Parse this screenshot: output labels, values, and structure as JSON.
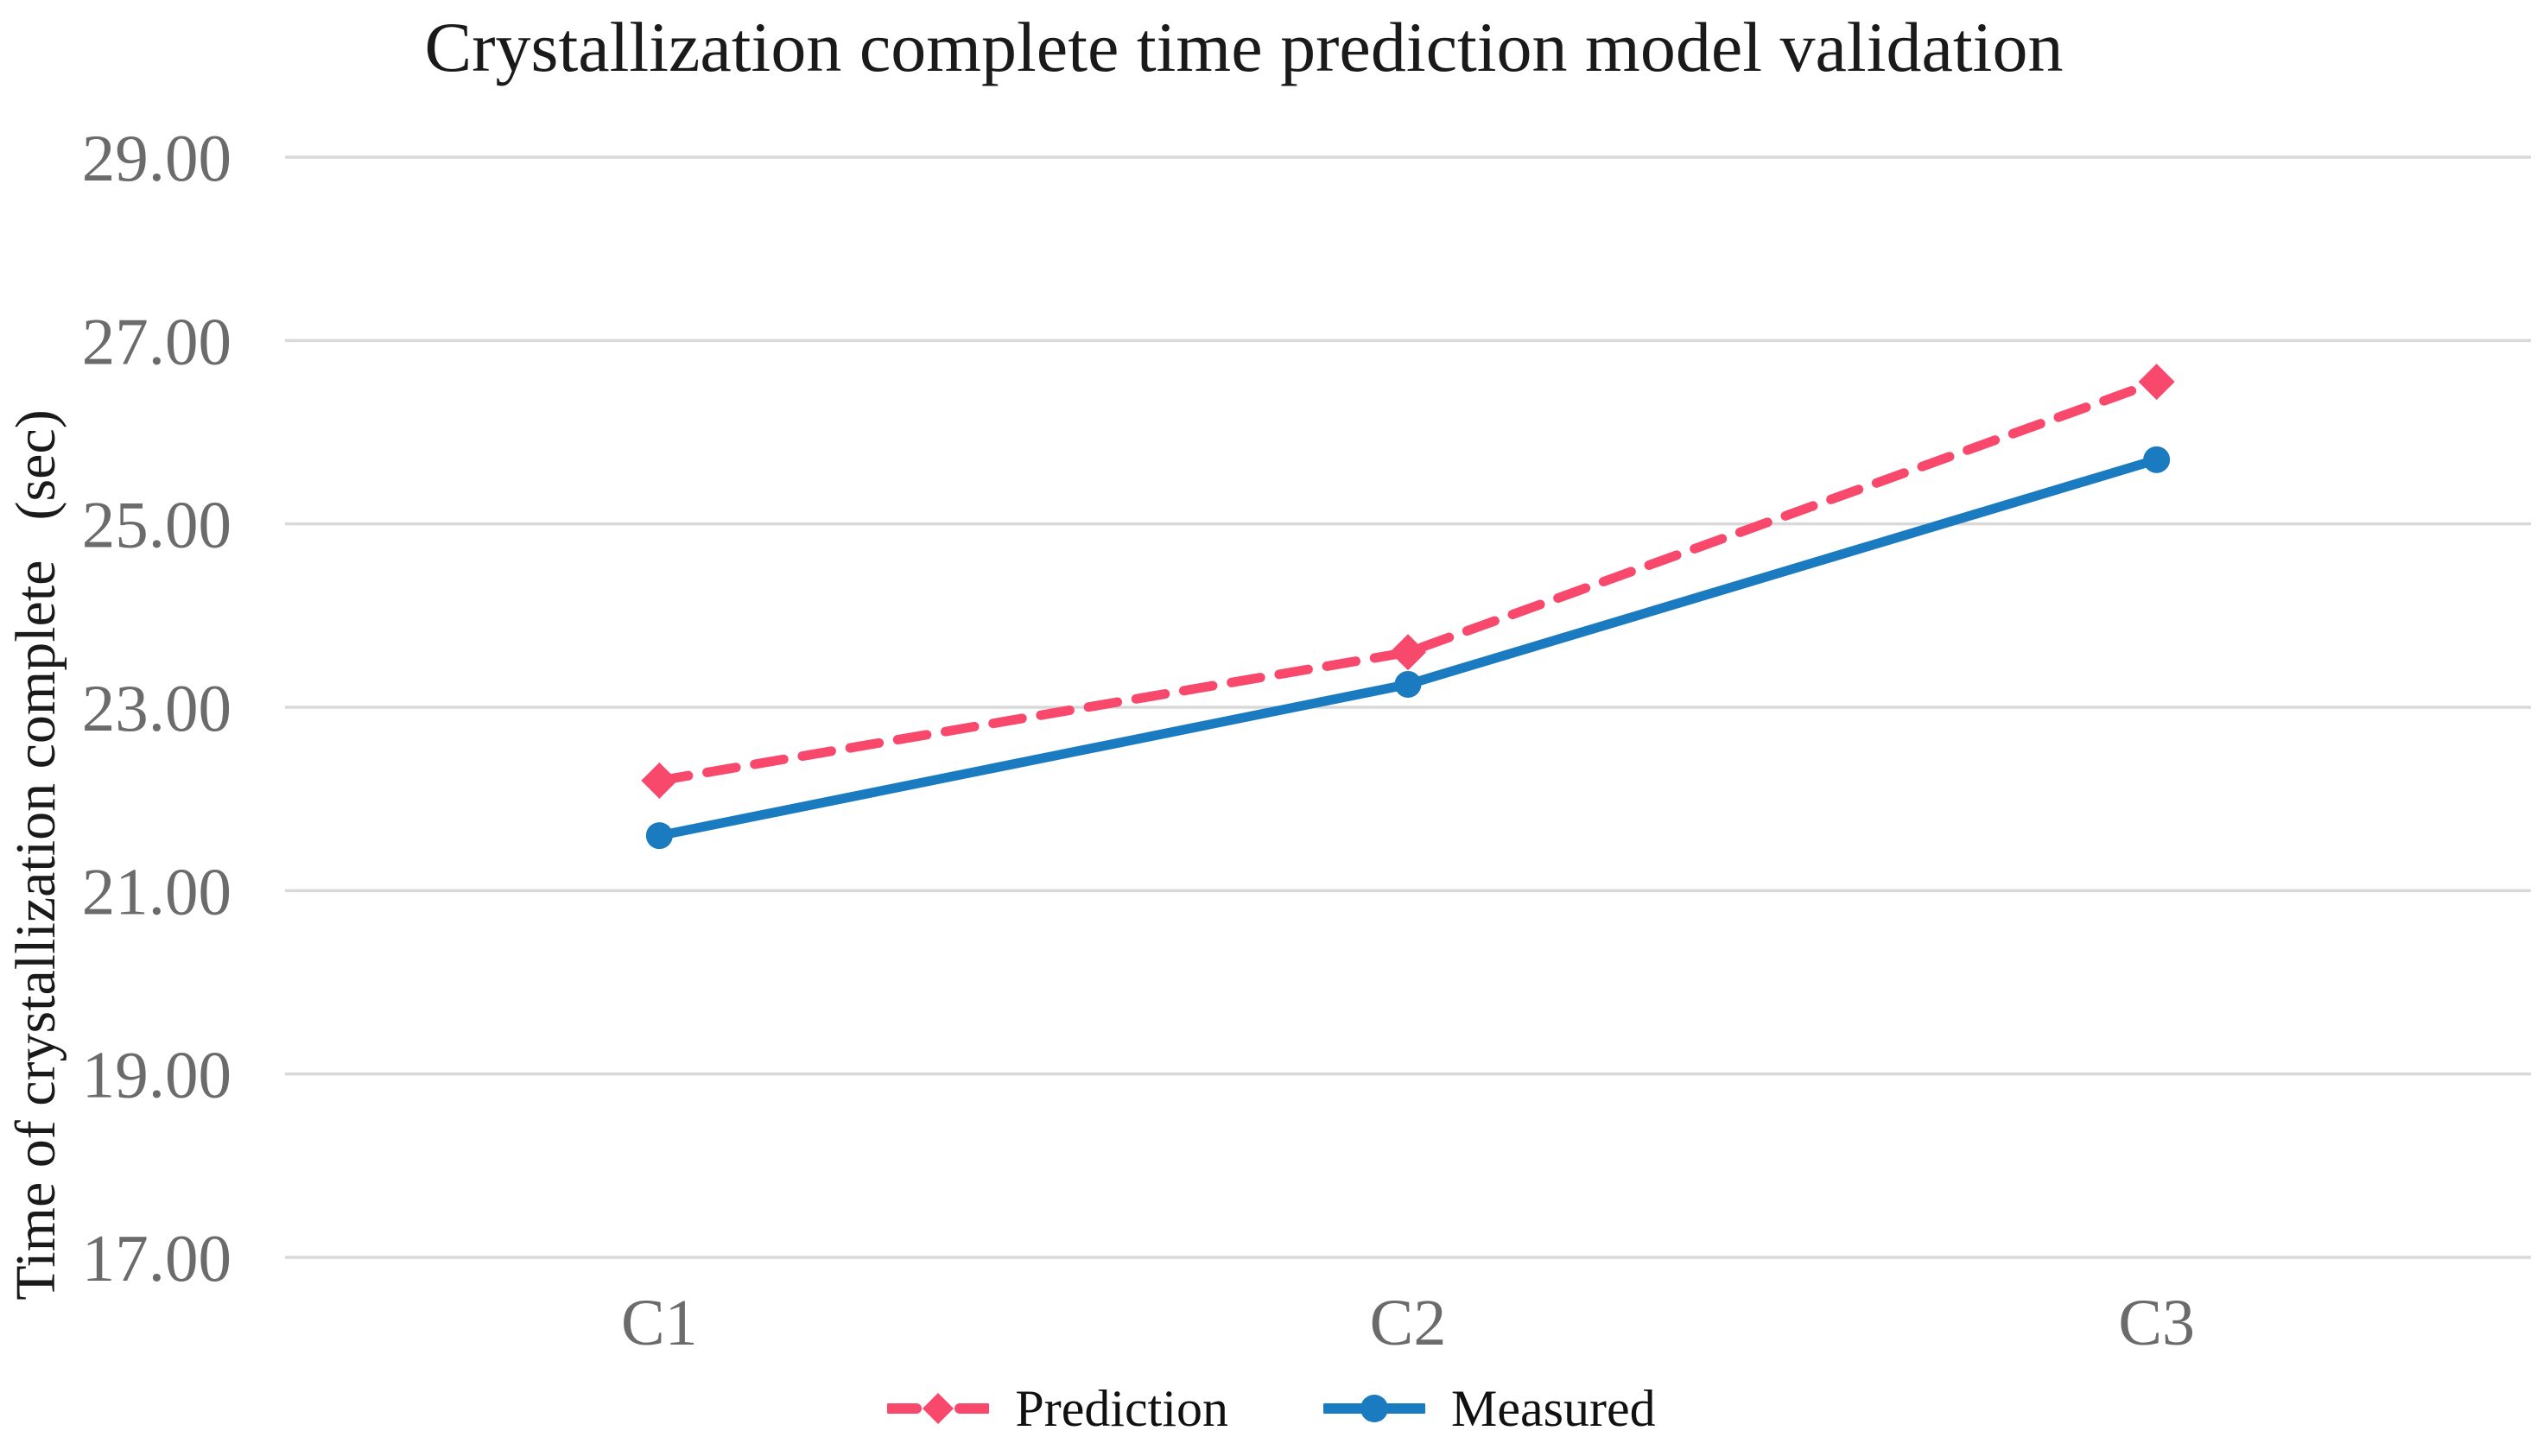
{
  "title": "Crystallization complete time prediction model validation",
  "chart_data": {
    "type": "line",
    "categories": [
      "C1",
      "C2",
      "C3"
    ],
    "series": [
      {
        "name": "Prediction",
        "values": [
          22.2,
          23.6,
          26.55
        ],
        "color": "#F8486C",
        "line_style": "dashed",
        "marker": "diamond"
      },
      {
        "name": "Measured",
        "values": [
          21.6,
          23.25,
          25.7
        ],
        "color": "#1B7BC0",
        "line_style": "solid",
        "marker": "circle"
      }
    ],
    "ylabel_text": "Time of crystallization complete",
    "ylabel_unit": "(sec)",
    "yticks": {
      "values": [
        29,
        27,
        25,
        23,
        21,
        19,
        17
      ],
      "labels": [
        "29.00",
        "27.00",
        "25.00",
        "23.00",
        "21.00",
        "19.00",
        "17.00"
      ]
    },
    "ylim": [
      17,
      29
    ],
    "grid": true,
    "grid_color": "#D9D9D9",
    "axis_text_color": "#6b6b6b",
    "legend_position": "bottom"
  }
}
